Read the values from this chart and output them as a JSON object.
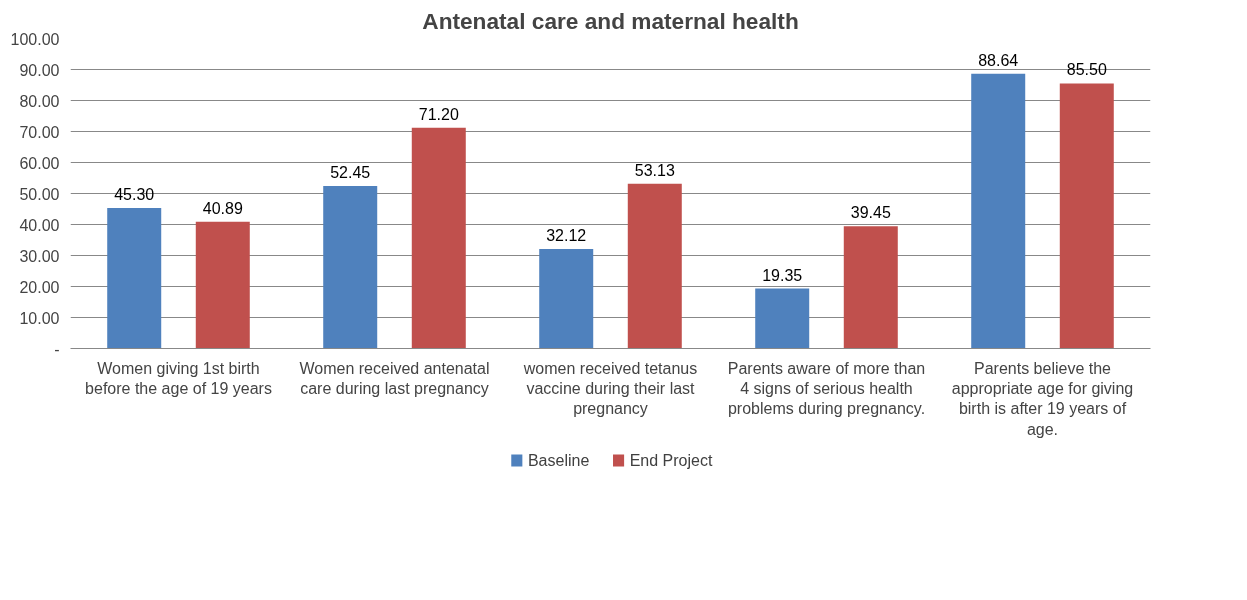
{
  "chart_data": {
    "type": "bar",
    "title": "Antenatal care and maternal health",
    "categories": [
      "Women giving 1st birth before the age of 19 years",
      "Women received antenatal care during last pregnancy",
      "women received tetanus vaccine during their last pregnancy",
      "Parents aware of more than 4 signs of serious health problems during pregnancy.",
      "Parents believe the appropriate age for giving birth is after 19 years of age."
    ],
    "series": [
      {
        "name": "Baseline",
        "color": "#4f81bd",
        "values": [
          45.3,
          52.45,
          32.12,
          19.35,
          88.64
        ],
        "value_labels": [
          "45.30",
          "52.45",
          "32.12",
          "19.35",
          "88.64"
        ]
      },
      {
        "name": "End Project",
        "color": "#c0504d",
        "values": [
          40.89,
          71.2,
          53.13,
          39.45,
          85.5
        ],
        "value_labels": [
          "40.89",
          "71.20",
          "53.13",
          "39.45",
          "85.50"
        ]
      }
    ],
    "ylim": [
      0,
      100
    ],
    "yticks": [
      {
        "value": 0,
        "label": "-"
      },
      {
        "value": 10,
        "label": "10.00"
      },
      {
        "value": 20,
        "label": "20.00"
      },
      {
        "value": 30,
        "label": "30.00"
      },
      {
        "value": 40,
        "label": "40.00"
      },
      {
        "value": 50,
        "label": "50.00"
      },
      {
        "value": 60,
        "label": "60.00"
      },
      {
        "value": 70,
        "label": "70.00"
      },
      {
        "value": 80,
        "label": "80.00"
      },
      {
        "value": 90,
        "label": "90.00"
      },
      {
        "value": 100,
        "label": "100.00"
      }
    ],
    "grid": "y",
    "legend": "bottom"
  }
}
